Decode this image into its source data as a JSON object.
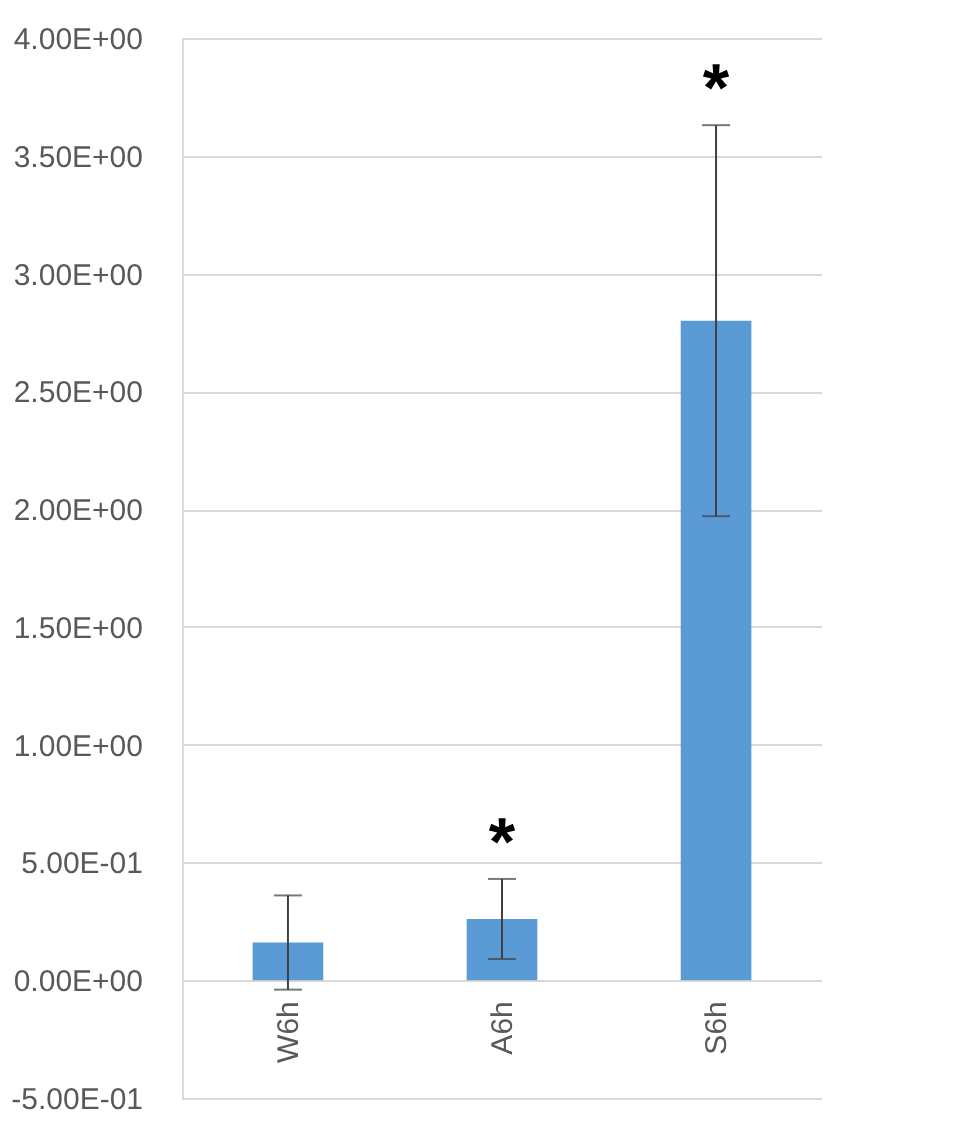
{
  "chart_data": {
    "type": "bar",
    "categories": [
      "W6h",
      "A6h",
      "S6h"
    ],
    "values": [
      0.16,
      0.26,
      2.8
    ],
    "errors": [
      0.2,
      0.17,
      0.83
    ],
    "color": "#5b9bd5",
    "ylim": [
      -0.5,
      4.0
    ],
    "yticks": [
      {
        "value": -0.5,
        "label": "-5.00E-01"
      },
      {
        "value": 0,
        "label": "0.00E+00"
      },
      {
        "value": 0.5,
        "label": "5.00E-01"
      },
      {
        "value": 1.0,
        "label": "1.00E+00"
      },
      {
        "value": 1.5,
        "label": "1.50E+00"
      },
      {
        "value": 2.0,
        "label": "2.00E+00"
      },
      {
        "value": 2.5,
        "label": "2.50E+00"
      },
      {
        "value": 3.0,
        "label": "3.00E+00"
      },
      {
        "value": 3.5,
        "label": "3.50E+00"
      },
      {
        "value": 4.0,
        "label": "4.00E+00"
      }
    ],
    "grid": "y",
    "value_labels": [
      null,
      "*",
      "*"
    ]
  }
}
